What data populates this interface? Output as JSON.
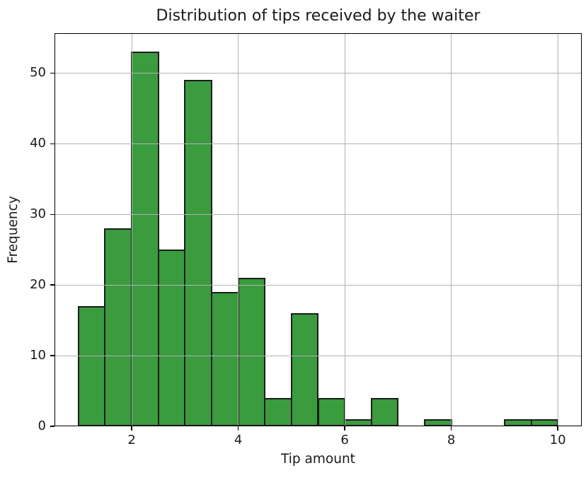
{
  "chart_data": {
    "type": "bar",
    "subtype": "histogram",
    "title": "Distribution of tips received by the waiter",
    "xlabel": "Tip amount",
    "ylabel": "Frequency",
    "bin_edges": [
      1.0,
      1.5,
      2.0,
      2.5,
      3.0,
      3.5,
      4.0,
      4.5,
      5.0,
      5.5,
      6.0,
      6.5,
      7.0,
      7.5,
      8.0,
      8.5,
      9.0,
      9.5,
      10.0
    ],
    "values": [
      17,
      28,
      53,
      25,
      49,
      19,
      21,
      4,
      16,
      4,
      1,
      4,
      0,
      1,
      0,
      0,
      1,
      1
    ],
    "xlim": [
      0.55,
      10.45
    ],
    "ylim": [
      0,
      55.65
    ],
    "xticks": [
      2,
      4,
      6,
      8,
      10
    ],
    "yticks": [
      0,
      10,
      20,
      30,
      40,
      50
    ],
    "grid": true,
    "legend": false,
    "colors": {
      "bar_fill": "#3a9b3f",
      "bar_edge": "#1c1c1c",
      "grid": "#b2b2b2",
      "spine": "#000000",
      "text": "#1a1a1a"
    }
  }
}
